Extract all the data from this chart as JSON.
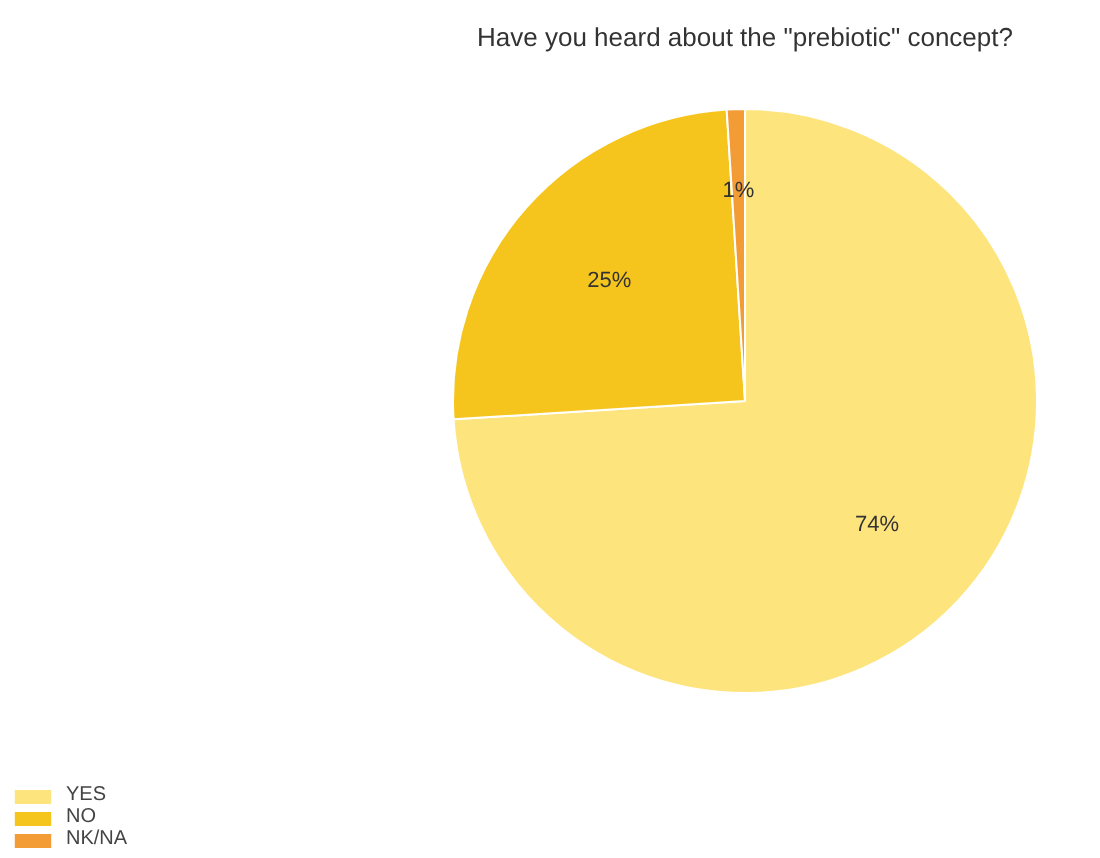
{
  "chart_data": {
    "type": "pie",
    "title": "Have you heard about the \"prebiotic\" concept?",
    "categories": [
      "YES",
      "NO",
      "NK/NA"
    ],
    "values": [
      74,
      25,
      1
    ],
    "colors": [
      "#fee47d",
      "#f6c51d",
      "#f39c36"
    ],
    "value_labels": [
      "74%",
      "25%",
      "1%"
    ],
    "legend": "bottom left"
  }
}
